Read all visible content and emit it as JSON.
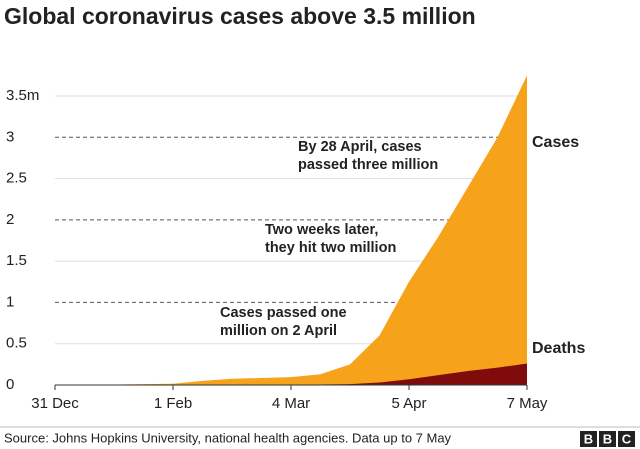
{
  "chart_data": {
    "type": "area",
    "title": "Global coronavirus cases above 3.5 million",
    "x": [
      "31 Dec",
      null,
      null,
      null,
      "1 Feb",
      null,
      null,
      null,
      "4 Mar",
      null,
      null,
      null,
      "5 Apr",
      null,
      null,
      null,
      "7 May"
    ],
    "series": [
      {
        "name": "Cases",
        "color": "#f7a21b",
        "values": [
          0,
          0.001,
          0.005,
          0.01,
          0.015,
          0.05,
          0.075,
          0.085,
          0.095,
          0.13,
          0.25,
          0.6,
          1.25,
          1.8,
          2.4,
          3.0,
          3.75
        ]
      },
      {
        "name": "Deaths",
        "color": "#800b0b",
        "values": [
          0,
          0,
          0,
          0,
          0,
          0,
          0.002,
          0.003,
          0.004,
          0.006,
          0.01,
          0.03,
          0.07,
          0.12,
          0.17,
          0.21,
          0.26
        ]
      }
    ],
    "ylim": [
      0,
      3.8
    ],
    "yticks": [
      0,
      0.5,
      1,
      1.5,
      2,
      2.5,
      3,
      {
        "value": 3.5,
        "label": "3.5m"
      }
    ],
    "grid": true,
    "annotations": [
      [
        "By 28 April, cases",
        "passed three million"
      ],
      [
        "Two weeks later,",
        "they hit two million"
      ],
      [
        "Cases passed one",
        "million on 2 April"
      ]
    ],
    "source": "Source: Johns Hopkins University, national health agencies. Data up to 7 May",
    "logo": [
      "B",
      "B",
      "C"
    ]
  }
}
